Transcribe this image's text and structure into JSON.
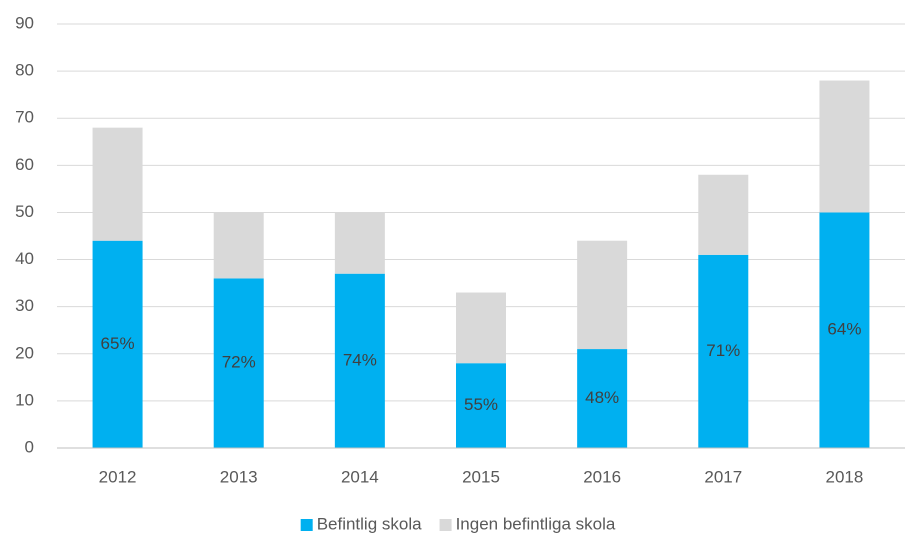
{
  "chart_data": {
    "type": "stacked_bar",
    "categories": [
      "2012",
      "2013",
      "2014",
      "2015",
      "2016",
      "2017",
      "2018"
    ],
    "series": [
      {
        "name": "Befintlig skola",
        "color": "#00b0f0",
        "values": [
          44,
          36,
          37,
          18,
          21,
          41,
          50
        ]
      },
      {
        "name": "Ingen befintliga skola",
        "color": "#d9d9d9",
        "values": [
          24,
          14,
          13,
          15,
          23,
          17,
          28
        ]
      }
    ],
    "percent_labels": [
      "65%",
      "72%",
      "74%",
      "55%",
      "48%",
      "71%",
      "64%"
    ],
    "ylim": [
      0,
      90
    ],
    "yticks": [
      0,
      10,
      20,
      30,
      40,
      50,
      60,
      70,
      80,
      90
    ],
    "grid": true,
    "legend": "bottom"
  }
}
